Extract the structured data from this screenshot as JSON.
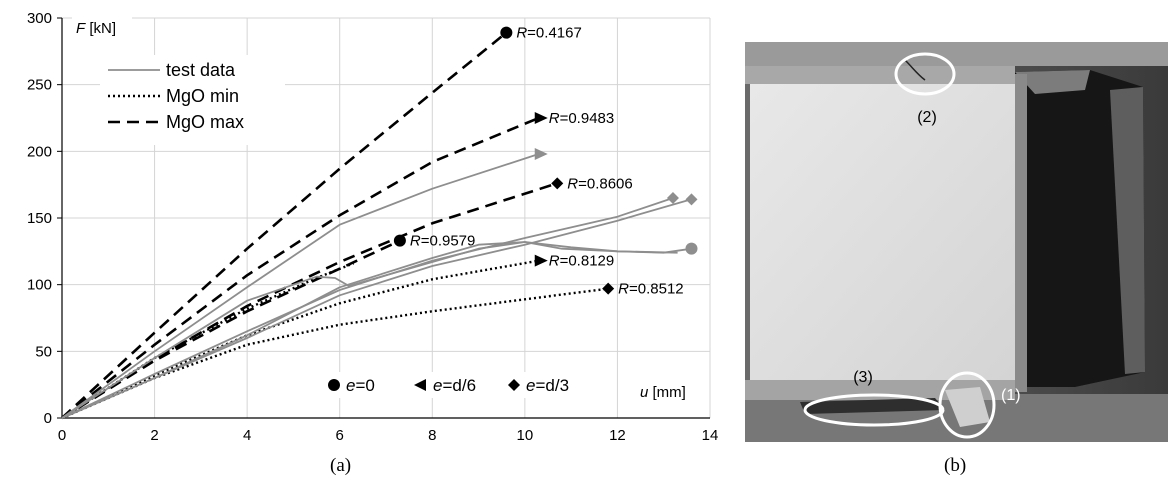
{
  "chart_data": {
    "type": "line",
    "xlabel": "u [mm]",
    "ylabel": "F [kN]",
    "xlim": [
      0,
      14
    ],
    "ylim": [
      0,
      300
    ],
    "x_ticks": [
      "0",
      "2",
      "4",
      "6",
      "8",
      "10",
      "12",
      "14"
    ],
    "y_ticks": [
      "0",
      "50",
      "100",
      "150",
      "200",
      "250",
      "300"
    ],
    "grid": true,
    "legend_lines": [
      "test data",
      "MgO min",
      "MgO max"
    ],
    "legend_markers": [
      "e=0",
      "e=d/6",
      "e=d/3"
    ],
    "series": [
      {
        "name": "MgO max",
        "style": "dashed",
        "marker": "circle",
        "x": [
          0,
          2,
          4,
          6,
          8,
          9.6
        ],
        "y": [
          0,
          64,
          127,
          187,
          244,
          289
        ]
      },
      {
        "name": "MgO max",
        "style": "dashed",
        "marker": "arrow",
        "x": [
          0,
          2,
          4,
          6,
          8,
          10.3
        ],
        "y": [
          0,
          55,
          107,
          152,
          192,
          225
        ]
      },
      {
        "name": "MgO max",
        "style": "dashed",
        "marker": "diamond",
        "x": [
          0,
          2,
          4,
          6,
          8,
          10.7
        ],
        "y": [
          0,
          44,
          84,
          117,
          146,
          176
        ]
      },
      {
        "name": "MgO max",
        "style": "dashed",
        "marker": "circle",
        "x": [
          0,
          2,
          4,
          6,
          7.3
        ],
        "y": [
          0,
          43,
          80,
          112,
          133
        ]
      },
      {
        "name": "MgO min",
        "style": "dotted",
        "marker": "arrow",
        "x": [
          0,
          2,
          4,
          6,
          8,
          10.3
        ],
        "y": [
          0,
          32,
          62,
          86,
          104,
          118
        ]
      },
      {
        "name": "MgO min",
        "style": "dotted",
        "marker": "diamond",
        "x": [
          0,
          2,
          4,
          6,
          8,
          10,
          11.8
        ],
        "y": [
          0,
          30,
          55,
          70,
          80,
          89,
          97
        ]
      },
      {
        "name": "MgO min",
        "style": "dotted",
        "marker": null,
        "x": [
          0,
          2,
          4,
          5.5,
          6.3
        ],
        "y": [
          0,
          45,
          82,
          105,
          116
        ]
      },
      {
        "name": "test data",
        "style": "solid",
        "marker": "arrow",
        "x": [
          0,
          2,
          4,
          6,
          8,
          10.3
        ],
        "y": [
          0,
          50,
          98,
          145,
          172,
          198
        ]
      },
      {
        "name": "test data",
        "style": "solid",
        "marker": "diamond",
        "x": [
          0,
          2,
          4,
          6,
          8,
          10,
          12,
          13.2
        ],
        "y": [
          0,
          33,
          65,
          96,
          118,
          135,
          151,
          165
        ]
      },
      {
        "name": "test data",
        "style": "solid",
        "marker": "diamond",
        "x": [
          0,
          2,
          4,
          6,
          8,
          10,
          12,
          13.6
        ],
        "y": [
          0,
          30,
          60,
          92,
          114,
          130,
          148,
          164
        ]
      },
      {
        "name": "test data",
        "style": "solid",
        "marker": "circle",
        "x": [
          0,
          2,
          4,
          5.5,
          5.9,
          6.2,
          7,
          8,
          9,
          10,
          11,
          12,
          13,
          13.6
        ],
        "y": [
          0,
          45,
          88,
          106,
          105,
          99,
          107,
          117,
          127,
          132,
          128,
          125,
          124,
          127
        ]
      },
      {
        "name": "test data",
        "style": "solid",
        "marker": null,
        "x": [
          0,
          2,
          4,
          6,
          8,
          9,
          10,
          10.8,
          12,
          13.3
        ],
        "y": [
          0,
          30,
          62,
          98,
          120,
          130,
          132,
          127,
          125,
          124
        ]
      }
    ],
    "annotations": [
      {
        "label": "R",
        "value": "=0.4167",
        "x": 9.6,
        "y": 289
      },
      {
        "label": "R",
        "value": "=0.9483",
        "x": 10.3,
        "y": 225
      },
      {
        "label": "R",
        "value": "=0.8606",
        "x": 10.7,
        "y": 176
      },
      {
        "label": "R",
        "value": "=0.9579",
        "x": 7.3,
        "y": 133
      },
      {
        "label": "R",
        "value": "=0.8129",
        "x": 10.3,
        "y": 118
      },
      {
        "label": "R",
        "value": "=0.8512",
        "x": 11.8,
        "y": 97
      }
    ]
  },
  "captions": {
    "a": "(a)",
    "b": "(b)"
  },
  "photo": {
    "labels": [
      "(1)",
      "(2)",
      "(3)"
    ]
  }
}
